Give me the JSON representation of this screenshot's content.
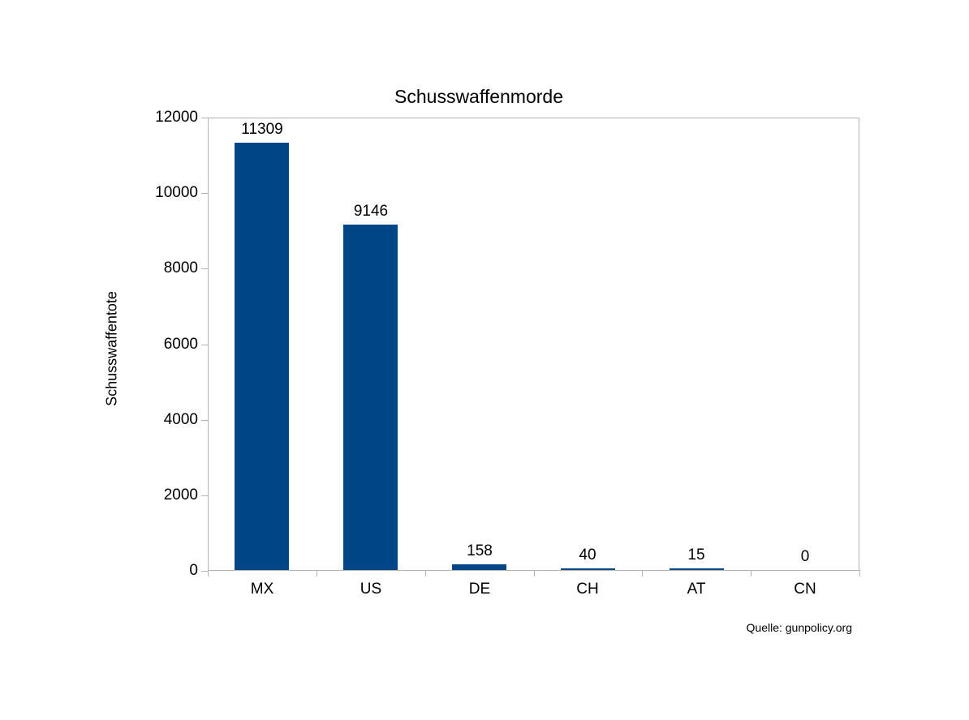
{
  "chart_data": {
    "type": "bar",
    "title": "Schusswaffenmorde",
    "xlabel": "",
    "ylabel": "Schusswaffentote",
    "categories": [
      "MX",
      "US",
      "DE",
      "CH",
      "AT",
      "CN"
    ],
    "values": [
      11309,
      9146,
      158,
      40,
      15,
      0
    ],
    "yticks": [
      0,
      2000,
      4000,
      6000,
      8000,
      10000,
      12000
    ],
    "ylim": [
      0,
      12000
    ],
    "grid": false,
    "legend": "none",
    "data_labels": true,
    "bar_color": "#004586",
    "axis_color": "#b3b3b3",
    "text_color": "#000000",
    "background_color": "#ffffff"
  },
  "source_label": "Quelle: gunpolicy.org"
}
